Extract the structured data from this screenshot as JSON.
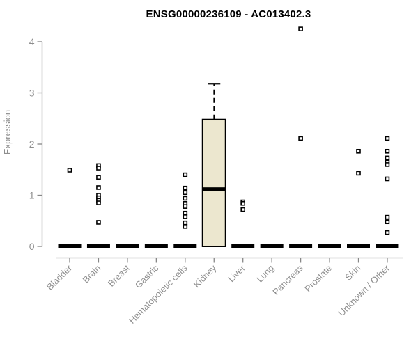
{
  "chart_data": {
    "type": "boxplot",
    "title": "ENSG00000236109 - AC013402.3",
    "ylabel": "Expression",
    "xlabel": "",
    "ylim": [
      0,
      4
    ],
    "yticks": [
      0,
      1,
      2,
      3,
      4
    ],
    "grid": false,
    "legend": "none",
    "categories": [
      "Bladder",
      "Brain",
      "Breast",
      "Gastric",
      "Hematopoietic cells",
      "Kidney",
      "Liver",
      "Lung",
      "Pancreas",
      "Prostate",
      "Skin",
      "Unknown / Other"
    ],
    "boxes": [
      {
        "category": "Bladder",
        "q1": 0,
        "median": 0,
        "q3": 0,
        "whisker_low": 0,
        "whisker_high": 0,
        "outliers": [
          1.49
        ]
      },
      {
        "category": "Brain",
        "q1": 0,
        "median": 0,
        "q3": 0,
        "whisker_low": 0,
        "whisker_high": 0,
        "outliers": [
          1.58,
          1.53,
          1.35,
          1.15,
          1.0,
          0.95,
          0.9,
          0.85,
          0.47
        ]
      },
      {
        "category": "Breast",
        "q1": 0,
        "median": 0,
        "q3": 0,
        "whisker_low": 0,
        "whisker_high": 0,
        "outliers": []
      },
      {
        "category": "Gastric",
        "q1": 0,
        "median": 0,
        "q3": 0,
        "whisker_low": 0,
        "whisker_high": 0,
        "outliers": []
      },
      {
        "category": "Hematopoietic cells",
        "q1": 0,
        "median": 0,
        "q3": 0,
        "whisker_low": 0,
        "whisker_high": 0,
        "outliers": [
          1.4,
          1.14,
          1.05,
          0.94,
          0.84,
          0.78,
          0.65,
          0.58,
          0.46,
          0.39
        ]
      },
      {
        "category": "Kidney",
        "q1": 0,
        "median": 1.12,
        "q3": 2.48,
        "whisker_low": 0,
        "whisker_high": 3.18,
        "outliers": []
      },
      {
        "category": "Liver",
        "q1": 0,
        "median": 0,
        "q3": 0,
        "whisker_low": 0,
        "whisker_high": 0,
        "outliers": [
          0.87,
          0.84,
          0.72
        ]
      },
      {
        "category": "Lung",
        "q1": 0,
        "median": 0,
        "q3": 0,
        "whisker_low": 0,
        "whisker_high": 0,
        "outliers": []
      },
      {
        "category": "Pancreas",
        "q1": 0,
        "median": 0,
        "q3": 0,
        "whisker_low": 0,
        "whisker_high": 0,
        "outliers": [
          4.25,
          2.11
        ]
      },
      {
        "category": "Prostate",
        "q1": 0,
        "median": 0,
        "q3": 0,
        "whisker_low": 0,
        "whisker_high": 0,
        "outliers": []
      },
      {
        "category": "Skin",
        "q1": 0,
        "median": 0,
        "q3": 0,
        "whisker_low": 0,
        "whisker_high": 0,
        "outliers": [
          1.86,
          1.43
        ]
      },
      {
        "category": "Unknown / Other",
        "q1": 0,
        "median": 0,
        "q3": 0,
        "whisker_low": 0,
        "whisker_high": 0,
        "outliers": [
          2.11,
          1.86,
          1.73,
          1.65,
          1.6,
          1.32,
          0.57,
          0.48,
          0.27
        ]
      }
    ],
    "colors": {
      "box_fill": "#ece7cf",
      "box_border": "#000000",
      "median": "#000000",
      "zero_bar": "#000000",
      "outlier_stroke": "#000000",
      "outlier_fill": "#ffffff",
      "axis": "#878787",
      "tick_label": "#8e8e8e",
      "title": "#000000"
    }
  }
}
